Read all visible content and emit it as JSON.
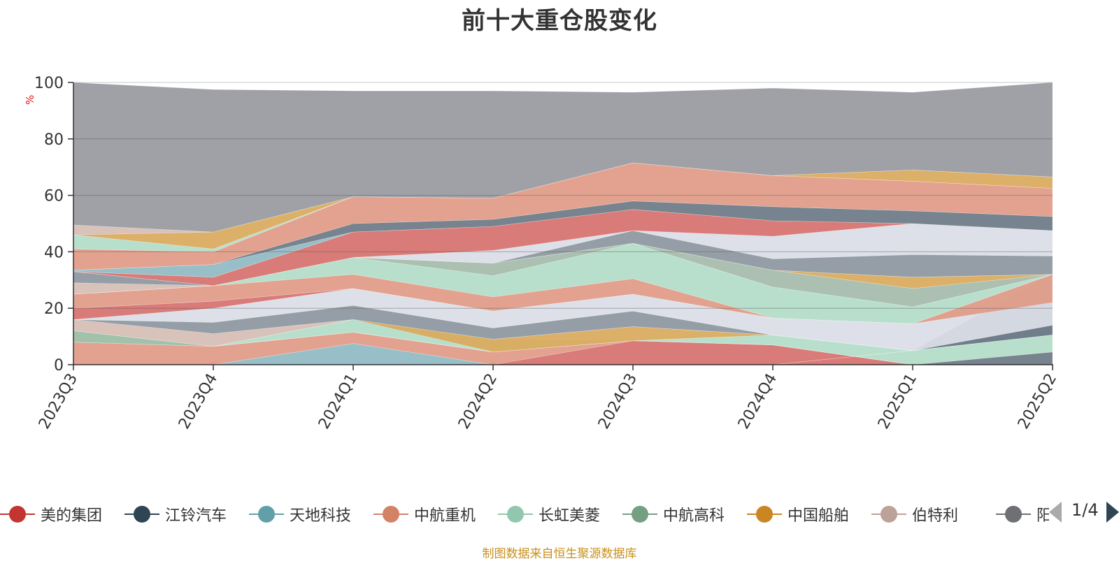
{
  "chart_data": {
    "type": "area",
    "title": "前十大重仓股变化",
    "ylabel": "%",
    "ylim": [
      0,
      100
    ],
    "yticks": [
      0,
      20,
      40,
      60,
      80,
      100
    ],
    "grid": true,
    "legend_position": "bottom",
    "stacked": true,
    "categories": [
      "2023Q3",
      "2023Q4",
      "2024Q1",
      "2024Q2",
      "2024Q3",
      "2024Q4",
      "2025Q1",
      "2025Q2"
    ],
    "bands": [
      {
        "color": "#e09a86",
        "values": [
          [
            0,
            8
          ],
          [
            0,
            6.5
          ],
          [
            7.5,
            11.5
          ],
          [
            0,
            4.5
          ],
          [
            8.5,
            8.5
          ],
          [
            7,
            7
          ],
          [
            0,
            0
          ],
          [
            4.5,
            4.5
          ]
        ]
      },
      {
        "color": "#8fbac2",
        "values": [
          [
            0,
            0
          ],
          [
            0,
            0
          ],
          [
            0,
            7.5
          ],
          [
            0,
            0
          ],
          [
            0,
            0
          ],
          [
            0,
            0
          ],
          [
            0,
            0
          ],
          [
            0,
            0
          ]
        ]
      },
      {
        "color": "#d6706d",
        "values": [
          [
            0,
            0
          ],
          [
            0,
            0
          ],
          [
            0,
            0
          ],
          [
            0,
            0
          ],
          [
            0,
            8.5
          ],
          [
            0,
            7
          ],
          [
            0,
            0
          ],
          [
            0,
            0
          ]
        ]
      },
      {
        "color": "#6b7884",
        "values": [
          [
            0,
            0
          ],
          [
            0,
            0
          ],
          [
            0,
            0
          ],
          [
            0,
            0
          ],
          [
            0,
            0
          ],
          [
            0,
            0
          ],
          [
            0,
            0
          ],
          [
            0,
            4.5
          ]
        ]
      },
      {
        "color": "#8c969e",
        "values": [
          [
            8,
            12
          ],
          [
            6.5,
            6.5
          ],
          [
            11.5,
            11.5
          ],
          [
            4.5,
            4.5
          ],
          [
            8.5,
            8.5
          ],
          [
            7,
            7
          ],
          [
            0,
            0
          ],
          [
            0,
            0
          ]
        ]
      },
      {
        "color": "#b2dcc7",
        "values": [
          [
            8,
            12
          ],
          [
            6.5,
            6.5
          ],
          [
            11.5,
            16
          ],
          [
            4.5,
            9
          ],
          [
            8.5,
            8.5
          ],
          [
            7,
            10.5
          ],
          [
            0,
            5
          ],
          [
            4.5,
            10.5
          ]
        ]
      },
      {
        "color": "#8fbac2",
        "values": [
          [
            0,
            0
          ],
          [
            0,
            0
          ],
          [
            0,
            0
          ],
          [
            0,
            0
          ],
          [
            0,
            0
          ],
          [
            0,
            0
          ],
          [
            5,
            5
          ],
          [
            10.5,
            22
          ]
        ]
      },
      {
        "color": "#6b7884",
        "values": [
          [
            0,
            0
          ],
          [
            0,
            0
          ],
          [
            0,
            0
          ],
          [
            0,
            0
          ],
          [
            0,
            0
          ],
          [
            0,
            0
          ],
          [
            5,
            5
          ],
          [
            10.5,
            14
          ]
        ]
      },
      {
        "color": "#9fbfa8",
        "values": [
          [
            8,
            12
          ],
          [
            6.5,
            6.5
          ],
          [
            11.5,
            11.5
          ],
          [
            4.5,
            4.5
          ],
          [
            8.5,
            8.5
          ],
          [
            7,
            7
          ],
          [
            0,
            0
          ],
          [
            0,
            0
          ]
        ]
      },
      {
        "color": "#d9a95b",
        "values": [
          [
            12,
            12
          ],
          [
            6.5,
            6.5
          ],
          [
            16,
            16
          ],
          [
            4.5,
            9
          ],
          [
            8.5,
            13.5
          ],
          [
            10.5,
            10.5
          ],
          [
            5,
            5
          ],
          [
            10.5,
            10.5
          ]
        ]
      },
      {
        "color": "#d5bdb4",
        "values": [
          [
            12,
            16
          ],
          [
            6.5,
            11
          ],
          [
            16,
            16
          ],
          [
            9,
            9
          ],
          [
            13.5,
            13.5
          ],
          [
            10.5,
            10.5
          ],
          [
            5,
            5
          ],
          [
            10.5,
            10.5
          ]
        ]
      },
      {
        "color": "#8c969e",
        "values": [
          [
            16,
            16
          ],
          [
            11,
            15
          ],
          [
            16,
            21
          ],
          [
            9,
            13
          ],
          [
            13.5,
            19
          ],
          [
            10.5,
            10.5
          ],
          [
            5,
            5
          ],
          [
            14,
            32
          ]
        ]
      },
      {
        "color": "#dadde6",
        "values": [
          [
            16,
            16
          ],
          [
            15,
            20
          ],
          [
            21,
            27
          ],
          [
            13,
            19
          ],
          [
            19,
            25
          ],
          [
            10.5,
            16.5
          ],
          [
            5,
            14.5
          ],
          [
            14,
            32
          ]
        ]
      },
      {
        "color": "#d6706d",
        "values": [
          [
            16,
            20
          ],
          [
            20,
            22.5
          ],
          [
            27,
            27
          ],
          [
            19,
            19
          ],
          [
            25,
            25
          ],
          [
            16.5,
            16.5
          ],
          [
            14.5,
            14.5
          ],
          [
            32,
            32
          ]
        ]
      },
      {
        "color": "#e09a86",
        "values": [
          [
            20,
            25
          ],
          [
            22.5,
            28
          ],
          [
            27,
            32
          ],
          [
            19,
            24
          ],
          [
            25,
            30.5
          ],
          [
            16.5,
            16.5
          ],
          [
            14.5,
            14.5
          ],
          [
            22,
            32
          ]
        ]
      },
      {
        "color": "#b2dcc7",
        "values": [
          [
            25,
            25
          ],
          [
            28,
            28
          ],
          [
            32,
            38
          ],
          [
            24,
            31.5
          ],
          [
            30.5,
            43
          ],
          [
            16.5,
            27.5
          ],
          [
            14.5,
            20.5
          ],
          [
            32,
            32
          ]
        ]
      },
      {
        "color": "#a4bba9",
        "values": [
          [
            25,
            25
          ],
          [
            28,
            28
          ],
          [
            38,
            38
          ],
          [
            31.5,
            36
          ],
          [
            43,
            43
          ],
          [
            27.5,
            33.5
          ],
          [
            20.5,
            27
          ],
          [
            32,
            32
          ]
        ]
      },
      {
        "color": "#d9a95b",
        "values": [
          [
            25,
            25
          ],
          [
            28,
            28
          ],
          [
            38,
            38
          ],
          [
            36,
            36
          ],
          [
            43,
            43
          ],
          [
            33.5,
            33.5
          ],
          [
            27,
            31
          ],
          [
            32,
            32
          ]
        ]
      },
      {
        "color": "#d5bdb4",
        "values": [
          [
            25,
            29
          ],
          [
            28,
            28
          ],
          [
            38,
            38
          ],
          [
            36,
            36
          ],
          [
            43,
            43
          ],
          [
            33.5,
            33.5
          ],
          [
            31,
            31
          ],
          [
            32,
            32
          ]
        ]
      },
      {
        "color": "#8c969e",
        "values": [
          [
            29,
            33
          ],
          [
            28,
            28
          ],
          [
            38,
            38
          ],
          [
            36,
            36
          ],
          [
            43,
            47.5
          ],
          [
            33.5,
            37.5
          ],
          [
            31,
            39
          ],
          [
            32,
            38.5
          ]
        ]
      },
      {
        "color": "#dadde6",
        "values": [
          [
            33,
            33
          ],
          [
            28,
            28
          ],
          [
            38,
            38
          ],
          [
            36,
            40.5
          ],
          [
            47.5,
            47.5
          ],
          [
            37.5,
            45.5
          ],
          [
            39,
            50
          ],
          [
            38.5,
            47.5
          ]
        ]
      },
      {
        "color": "#d6706d",
        "values": [
          [
            33,
            33
          ],
          [
            28,
            31
          ],
          [
            38,
            47
          ],
          [
            40.5,
            49
          ],
          [
            47.5,
            55
          ],
          [
            45.5,
            51
          ],
          [
            50,
            50
          ],
          [
            47.5,
            47.5
          ]
        ]
      },
      {
        "color": "#8fbac2",
        "values": [
          [
            33,
            33.5
          ],
          [
            31,
            35.5
          ],
          [
            47,
            47
          ],
          [
            49,
            49
          ],
          [
            55,
            55
          ],
          [
            51,
            51
          ],
          [
            50,
            50
          ],
          [
            47.5,
            47.5
          ]
        ]
      },
      {
        "color": "#6b7884",
        "values": [
          [
            33.5,
            33.5
          ],
          [
            35.5,
            35.5
          ],
          [
            47,
            50
          ],
          [
            49,
            51.5
          ],
          [
            55,
            58
          ],
          [
            51,
            56
          ],
          [
            50,
            54.5
          ],
          [
            47.5,
            52.5
          ]
        ]
      },
      {
        "color": "#e09a86",
        "values": [
          [
            33.5,
            41
          ],
          [
            35.5,
            40
          ],
          [
            50,
            59.5
          ],
          [
            51.5,
            59
          ],
          [
            58,
            71.5
          ],
          [
            56,
            67
          ],
          [
            54.5,
            65
          ],
          [
            52.5,
            62.5
          ]
        ]
      },
      {
        "color": "#b2dcc7",
        "values": [
          [
            41,
            46
          ],
          [
            40,
            41
          ],
          [
            59.5,
            59.5
          ],
          [
            59,
            59
          ],
          [
            71.5,
            71.5
          ],
          [
            67,
            67
          ],
          [
            65,
            65
          ],
          [
            62.5,
            62.5
          ]
        ]
      },
      {
        "color": "#d9a95b",
        "values": [
          [
            46,
            46
          ],
          [
            41,
            47
          ],
          [
            59.5,
            59.5
          ],
          [
            59,
            59
          ],
          [
            71.5,
            71.5
          ],
          [
            67,
            67
          ],
          [
            65,
            69
          ],
          [
            62.5,
            66.5
          ]
        ]
      },
      {
        "color": "#d5bdb4",
        "values": [
          [
            46,
            49.5
          ],
          [
            47,
            47
          ],
          [
            59.5,
            59.5
          ],
          [
            59,
            59
          ],
          [
            71.5,
            71.5
          ],
          [
            67,
            67
          ],
          [
            69,
            69
          ],
          [
            66.5,
            66.5
          ]
        ]
      },
      {
        "color": "#97999f",
        "values": [
          [
            49.5,
            100
          ],
          [
            47,
            97.5
          ],
          [
            59.5,
            97
          ],
          [
            59,
            97
          ],
          [
            71.5,
            96.5
          ],
          [
            67,
            98
          ],
          [
            69,
            96.5
          ],
          [
            66.5,
            100
          ]
        ]
      }
    ],
    "legend": [
      {
        "name": "美的集团",
        "color": "#c23531"
      },
      {
        "name": "江铃汽车",
        "color": "#2f4554"
      },
      {
        "name": "天地科技",
        "color": "#61a0a8"
      },
      {
        "name": "中航重机",
        "color": "#d48265"
      },
      {
        "name": "长虹美菱",
        "color": "#91c7ae"
      },
      {
        "name": "中航高科",
        "color": "#749f83"
      },
      {
        "name": "中国船舶",
        "color": "#ca8622"
      },
      {
        "name": "伯特利",
        "color": "#bda29a"
      },
      {
        "name": "阳光电源",
        "color": "#6e7074"
      }
    ],
    "legend_page": "1/4"
  },
  "source_note": "制图数据来自恒生聚源数据库"
}
